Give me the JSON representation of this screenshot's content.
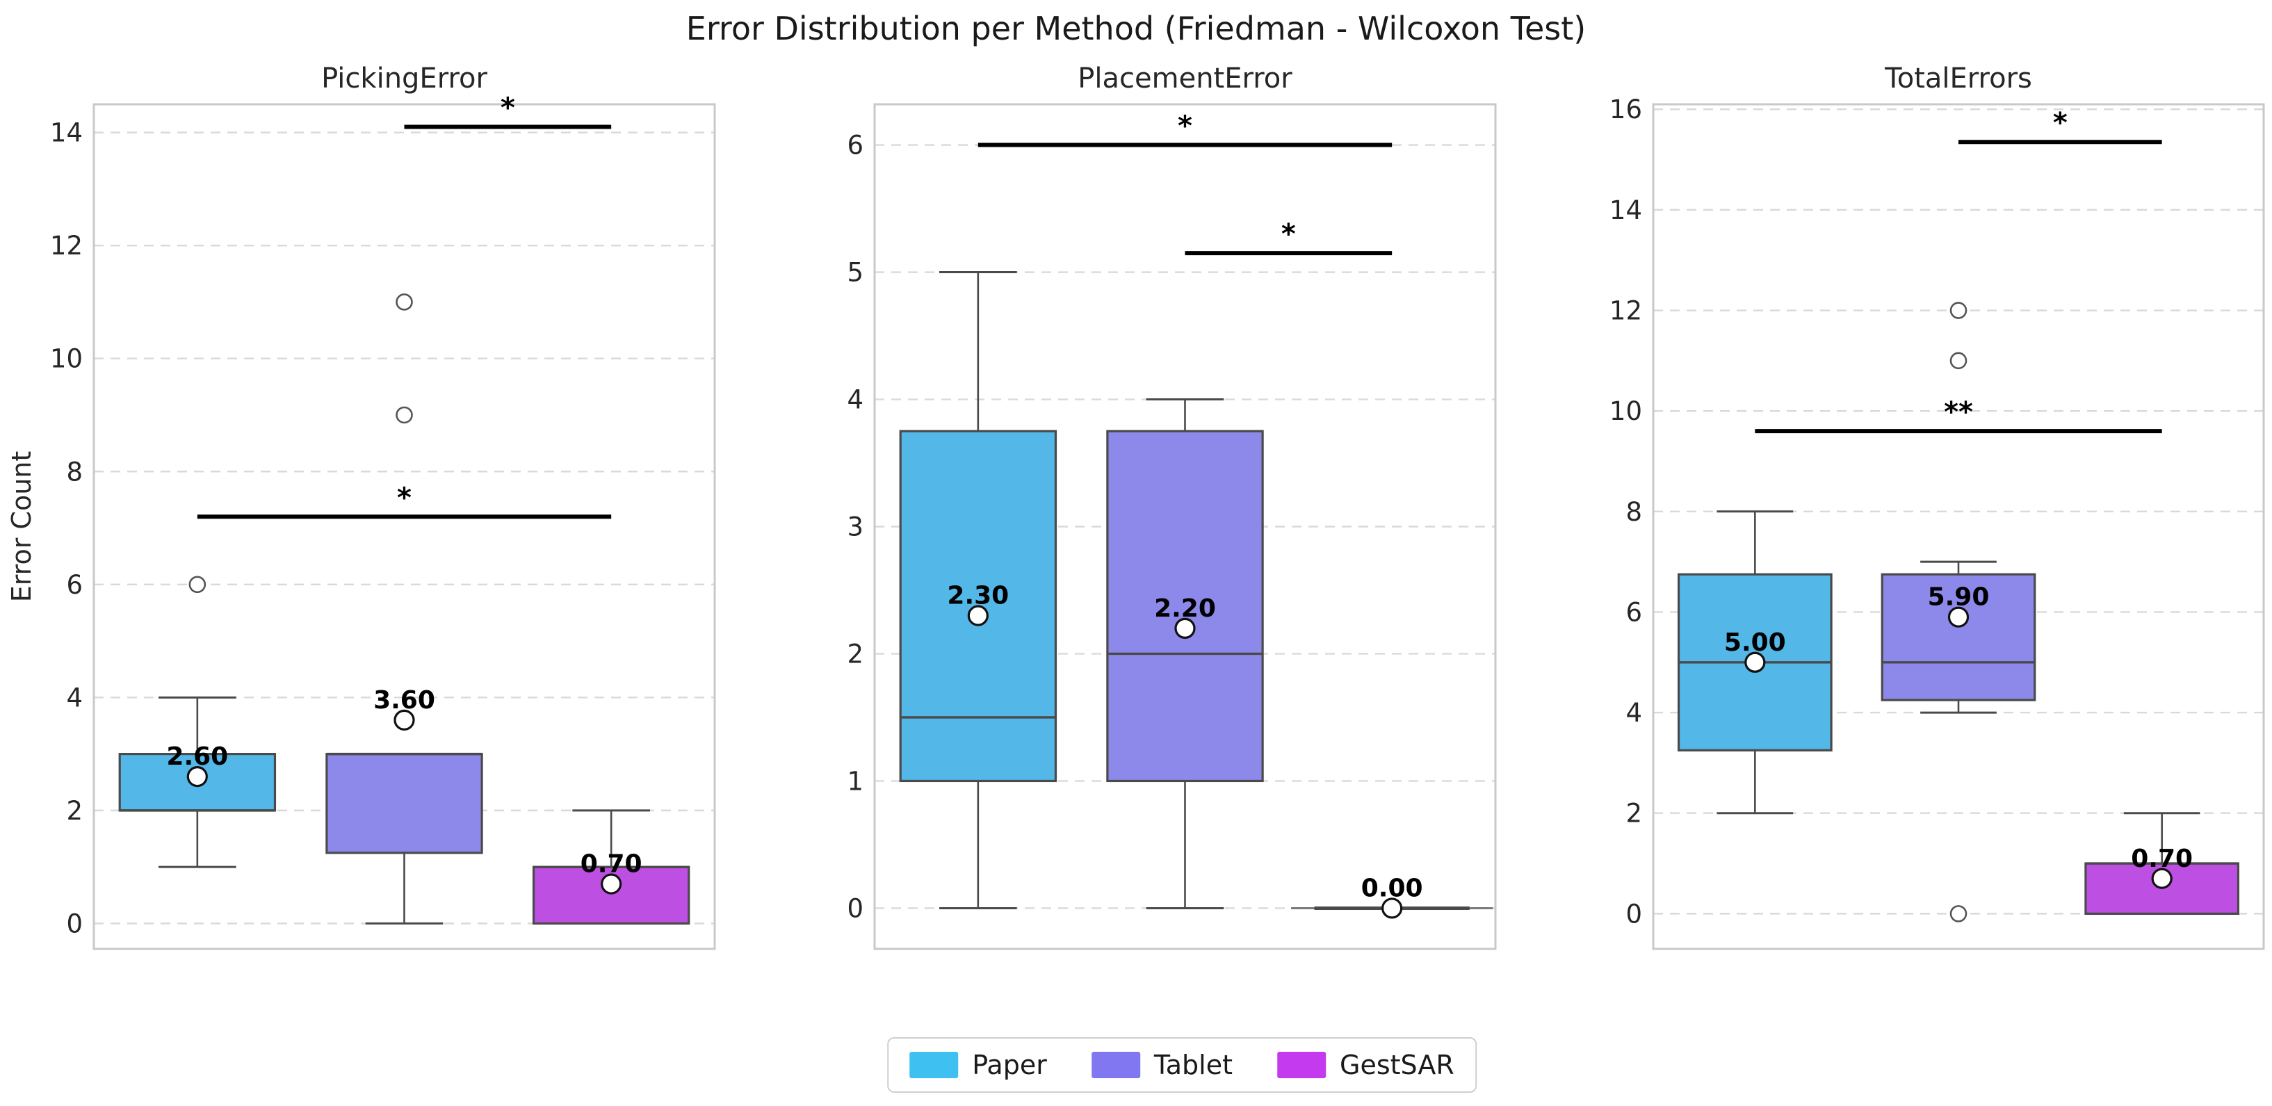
{
  "figure": {
    "title": "Error Distribution per Method (Friedman - Wilcoxon Test)",
    "ylabel": "Error Count",
    "background": "#ffffff",
    "grid_color": "#d9d9d9",
    "spine_color": "#c9c9c9",
    "box_edge_color": "#4a4a4a",
    "sig_bar_color": "#000000"
  },
  "legend": {
    "items": [
      {
        "label": "Paper",
        "color": "#3EC1F0"
      },
      {
        "label": "Tablet",
        "color": "#8177F0"
      },
      {
        "label": "GestSAR",
        "color": "#C43BEF"
      }
    ]
  },
  "chart_data": [
    {
      "type": "box",
      "title": "PickingError",
      "ylabel": "Error Count",
      "ylim": [
        -0.45,
        14.5
      ],
      "yticks": [
        0,
        2,
        4,
        6,
        8,
        10,
        12,
        14
      ],
      "grid": true,
      "categories": [
        "Paper",
        "Tablet",
        "GestSAR"
      ],
      "groups": [
        {
          "name": "Paper",
          "whisker_low": 1,
          "q1": 2,
          "median": 2,
          "q3": 3,
          "whisker_high": 4,
          "mean": 2.6,
          "mean_label": "2.60",
          "outliers": [
            6
          ],
          "fill": "#53B7E8"
        },
        {
          "name": "Tablet",
          "whisker_low": 0,
          "q1": 1.25,
          "median": 3,
          "q3": 3,
          "whisker_high": 3,
          "mean": 3.6,
          "mean_label": "3.60",
          "outliers": [
            9,
            11
          ],
          "fill": "#8D89EA"
        },
        {
          "name": "GestSAR",
          "whisker_low": 0,
          "q1": 0,
          "median": 1,
          "q3": 1,
          "whisker_high": 2,
          "mean": 0.7,
          "mean_label": "0.70",
          "outliers": [],
          "fill": "#BE4FE3"
        }
      ],
      "significance_bars": [
        {
          "y": 14.1,
          "from": "Tablet",
          "to": "GestSAR",
          "label": "*"
        },
        {
          "y": 7.2,
          "from": "Paper",
          "to": "GestSAR",
          "label": "*"
        }
      ]
    },
    {
      "type": "box",
      "title": "PlacementError",
      "ylabel": "",
      "ylim": [
        -0.32,
        6.32
      ],
      "yticks": [
        0,
        1,
        2,
        3,
        4,
        5,
        6
      ],
      "grid": true,
      "categories": [
        "Paper",
        "Tablet",
        "GestSAR"
      ],
      "groups": [
        {
          "name": "Paper",
          "whisker_low": 0,
          "q1": 1,
          "median": 1.5,
          "q3": 3.75,
          "whisker_high": 5,
          "mean": 2.3,
          "mean_label": "2.30",
          "outliers": [],
          "fill": "#53B7E8"
        },
        {
          "name": "Tablet",
          "whisker_low": 0,
          "q1": 1,
          "median": 2,
          "q3": 3.75,
          "whisker_high": 4,
          "mean": 2.2,
          "mean_label": "2.20",
          "outliers": [],
          "fill": "#8D89EA"
        },
        {
          "name": "GestSAR",
          "whisker_low": 0,
          "q1": 0,
          "median": 0,
          "q3": 0,
          "whisker_high": 0,
          "mean": 0.0,
          "mean_label": "0.00",
          "outliers": [],
          "fill": "#BE4FE3"
        }
      ],
      "significance_bars": [
        {
          "y": 6.0,
          "from": "Paper",
          "to": "GestSAR",
          "label": "*"
        },
        {
          "y": 5.15,
          "from": "Tablet",
          "to": "GestSAR",
          "label": "*"
        }
      ]
    },
    {
      "type": "box",
      "title": "TotalErrors",
      "ylabel": "",
      "ylim": [
        -0.7,
        16.1
      ],
      "yticks": [
        0,
        2,
        4,
        6,
        8,
        10,
        12,
        14,
        16
      ],
      "grid": true,
      "categories": [
        "Paper",
        "Tablet",
        "GestSAR"
      ],
      "groups": [
        {
          "name": "Paper",
          "whisker_low": 2,
          "q1": 3.25,
          "median": 5,
          "q3": 6.75,
          "whisker_high": 8,
          "mean": 5.0,
          "mean_label": "5.00",
          "outliers": [],
          "fill": "#53B7E8"
        },
        {
          "name": "Tablet",
          "whisker_low": 4,
          "q1": 4.25,
          "median": 5,
          "q3": 6.75,
          "whisker_high": 7,
          "mean": 5.9,
          "mean_label": "5.90",
          "outliers": [
            0,
            11,
            12
          ],
          "fill": "#8D89EA"
        },
        {
          "name": "GestSAR",
          "whisker_low": 0,
          "q1": 0,
          "median": 1,
          "q3": 1,
          "whisker_high": 2,
          "mean": 0.7,
          "mean_label": "0.70",
          "outliers": [],
          "fill": "#BE4FE3"
        }
      ],
      "significance_bars": [
        {
          "y": 15.35,
          "from": "Tablet",
          "to": "GestSAR",
          "label": "*"
        },
        {
          "y": 9.6,
          "from": "Paper",
          "to": "GestSAR",
          "label": "**"
        }
      ]
    }
  ]
}
